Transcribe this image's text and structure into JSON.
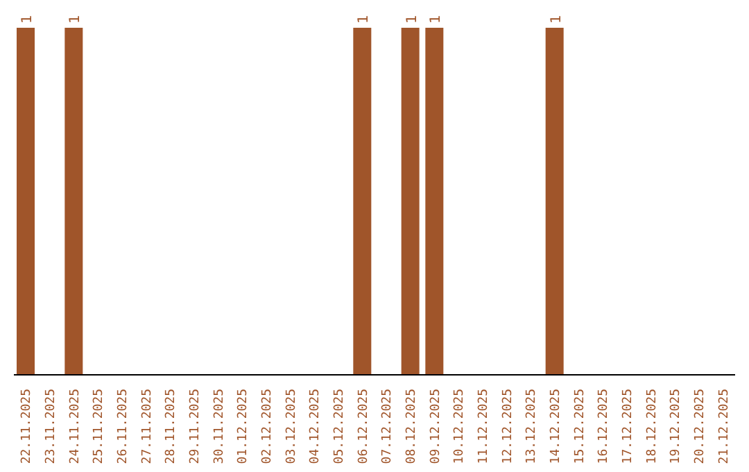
{
  "chart_data": {
    "type": "bar",
    "categories": [
      "22.11.2025",
      "23.11.2025",
      "24.11.2025",
      "25.11.2025",
      "26.11.2025",
      "27.11.2025",
      "28.11.2025",
      "29.11.2025",
      "30.11.2025",
      "01.12.2025",
      "02.12.2025",
      "03.12.2025",
      "04.12.2025",
      "05.12.2025",
      "06.12.2025",
      "07.12.2025",
      "08.12.2025",
      "09.12.2025",
      "10.12.2025",
      "11.12.2025",
      "12.12.2025",
      "13.12.2025",
      "14.12.2025",
      "15.12.2025",
      "16.12.2025",
      "17.12.2025",
      "18.12.2025",
      "19.12.2025",
      "20.12.2025",
      "21.12.2025"
    ],
    "values": [
      1,
      0,
      1,
      0,
      0,
      0,
      0,
      0,
      0,
      0,
      0,
      0,
      0,
      0,
      1,
      0,
      1,
      1,
      0,
      0,
      0,
      0,
      1,
      0,
      0,
      0,
      0,
      0,
      0,
      0
    ],
    "value_labels": [
      "1",
      null,
      "1",
      null,
      null,
      null,
      null,
      null,
      null,
      null,
      null,
      null,
      null,
      null,
      "1",
      null,
      "1",
      "1",
      null,
      null,
      null,
      null,
      "1",
      null,
      null,
      null,
      null,
      null,
      null,
      null
    ],
    "color": "#a0552a",
    "tick_labels": "x",
    "grid": false,
    "legend": false
  }
}
